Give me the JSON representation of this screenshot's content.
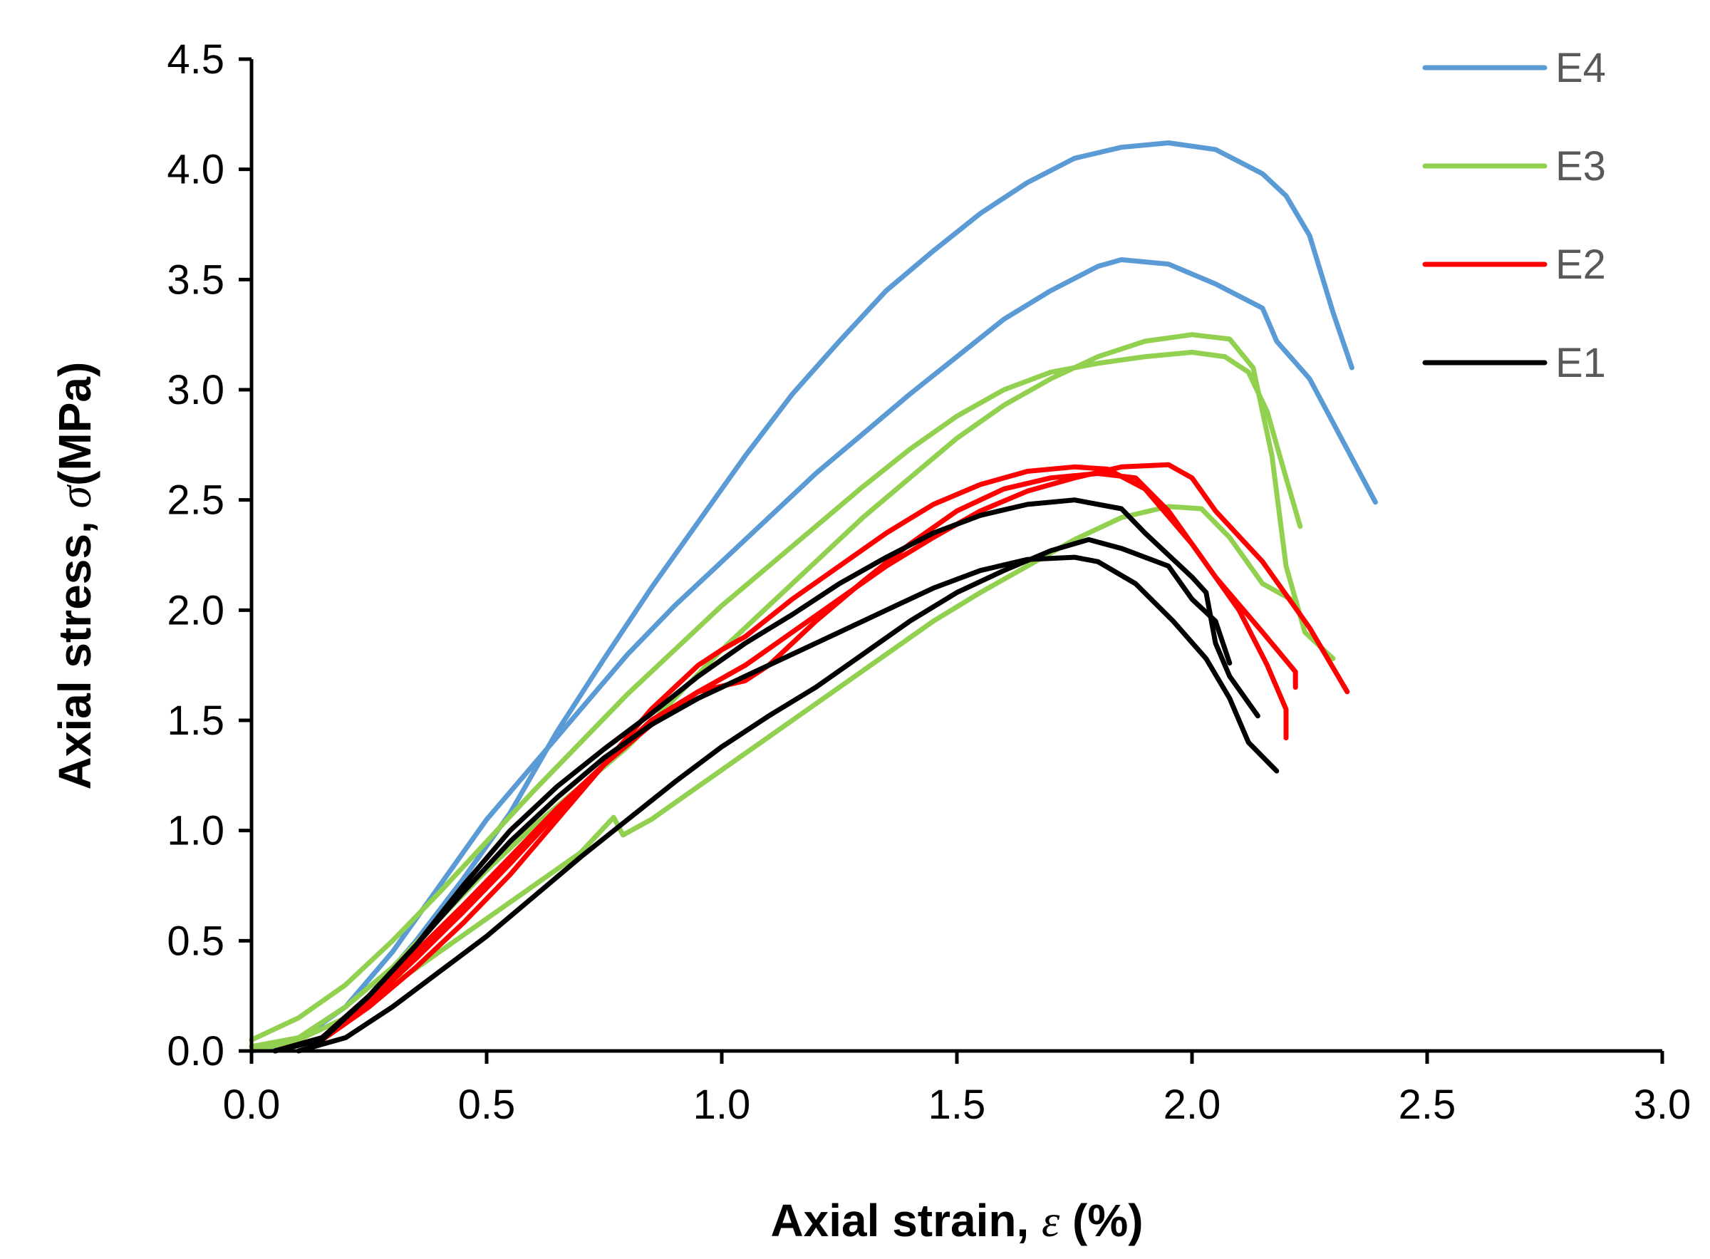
{
  "chart_data": {
    "type": "line",
    "title": "",
    "xlabel": {
      "prefix": "Axial strain, ",
      "symbol": "ε",
      "suffix": " (%)"
    },
    "ylabel": {
      "prefix": "Axial stress, ",
      "symbol": "σ",
      "suffix": "(MPa)"
    },
    "xlim": [
      0,
      3.0
    ],
    "ylim": [
      0,
      4.5
    ],
    "x_ticks": [
      "0.0",
      "0.5",
      "1.0",
      "1.5",
      "2.0",
      "2.5",
      "3.0"
    ],
    "y_ticks": [
      "0.0",
      "0.5",
      "1.0",
      "1.5",
      "2.0",
      "2.5",
      "3.0",
      "3.5",
      "4.0",
      "4.5"
    ],
    "grid": false,
    "legend_position": "top-right",
    "legend": [
      {
        "name": "E4",
        "color": "#5B9BD5"
      },
      {
        "name": "E3",
        "color": "#92D050"
      },
      {
        "name": "E2",
        "color": "#FF0000"
      },
      {
        "name": "E1",
        "color": "#000000"
      }
    ],
    "series": [
      {
        "group": "E4",
        "color": "#5B9BD5",
        "points": [
          [
            0,
            0.02
          ],
          [
            0.1,
            0.05
          ],
          [
            0.2,
            0.2
          ],
          [
            0.3,
            0.45
          ],
          [
            0.4,
            0.75
          ],
          [
            0.5,
            1.05
          ],
          [
            0.6,
            1.3
          ],
          [
            0.7,
            1.55
          ],
          [
            0.8,
            1.8
          ],
          [
            0.9,
            2.02
          ],
          [
            1.0,
            2.22
          ],
          [
            1.1,
            2.42
          ],
          [
            1.2,
            2.62
          ],
          [
            1.3,
            2.8
          ],
          [
            1.4,
            2.98
          ],
          [
            1.5,
            3.15
          ],
          [
            1.6,
            3.32
          ],
          [
            1.7,
            3.45
          ],
          [
            1.8,
            3.56
          ],
          [
            1.85,
            3.59
          ],
          [
            1.95,
            3.57
          ],
          [
            2.05,
            3.48
          ],
          [
            2.15,
            3.37
          ],
          [
            2.18,
            3.22
          ],
          [
            2.25,
            3.05
          ],
          [
            2.3,
            2.85
          ],
          [
            2.39,
            2.49
          ]
        ]
      },
      {
        "group": "E4",
        "color": "#5B9BD5",
        "points": [
          [
            0,
            0
          ],
          [
            0.15,
            0.05
          ],
          [
            0.25,
            0.25
          ],
          [
            0.35,
            0.5
          ],
          [
            0.45,
            0.78
          ],
          [
            0.55,
            1.08
          ],
          [
            0.65,
            1.45
          ],
          [
            0.75,
            1.78
          ],
          [
            0.85,
            2.1
          ],
          [
            0.95,
            2.4
          ],
          [
            1.05,
            2.7
          ],
          [
            1.15,
            2.98
          ],
          [
            1.25,
            3.22
          ],
          [
            1.35,
            3.45
          ],
          [
            1.45,
            3.63
          ],
          [
            1.55,
            3.8
          ],
          [
            1.65,
            3.94
          ],
          [
            1.75,
            4.05
          ],
          [
            1.85,
            4.1
          ],
          [
            1.95,
            4.12
          ],
          [
            2.05,
            4.09
          ],
          [
            2.15,
            3.98
          ],
          [
            2.2,
            3.88
          ],
          [
            2.25,
            3.7
          ],
          [
            2.3,
            3.35
          ],
          [
            2.34,
            3.1
          ]
        ]
      },
      {
        "group": "E3",
        "color": "#92D050",
        "points": [
          [
            0,
            0.05
          ],
          [
            0.1,
            0.15
          ],
          [
            0.2,
            0.3
          ],
          [
            0.3,
            0.5
          ],
          [
            0.4,
            0.72
          ],
          [
            0.5,
            0.95
          ],
          [
            0.6,
            1.18
          ],
          [
            0.7,
            1.4
          ],
          [
            0.8,
            1.62
          ],
          [
            0.9,
            1.82
          ],
          [
            1.0,
            2.02
          ],
          [
            1.1,
            2.2
          ],
          [
            1.2,
            2.38
          ],
          [
            1.3,
            2.56
          ],
          [
            1.4,
            2.73
          ],
          [
            1.5,
            2.88
          ],
          [
            1.6,
            3.0
          ],
          [
            1.7,
            3.08
          ],
          [
            1.8,
            3.12
          ],
          [
            1.9,
            3.15
          ],
          [
            2.0,
            3.17
          ],
          [
            2.07,
            3.15
          ],
          [
            2.12,
            3.08
          ],
          [
            2.16,
            2.9
          ],
          [
            2.2,
            2.6
          ],
          [
            2.23,
            2.38
          ]
        ]
      },
      {
        "group": "E3",
        "color": "#92D050",
        "points": [
          [
            0,
            0.02
          ],
          [
            0.1,
            0.06
          ],
          [
            0.2,
            0.2
          ],
          [
            0.3,
            0.38
          ],
          [
            0.4,
            0.6
          ],
          [
            0.5,
            0.82
          ],
          [
            0.6,
            1.02
          ],
          [
            0.7,
            1.2
          ],
          [
            0.8,
            1.38
          ],
          [
            0.9,
            1.6
          ],
          [
            1.0,
            1.82
          ],
          [
            1.1,
            2.02
          ],
          [
            1.2,
            2.22
          ],
          [
            1.3,
            2.42
          ],
          [
            1.4,
            2.6
          ],
          [
            1.5,
            2.78
          ],
          [
            1.6,
            2.93
          ],
          [
            1.7,
            3.05
          ],
          [
            1.8,
            3.15
          ],
          [
            1.9,
            3.22
          ],
          [
            2.0,
            3.25
          ],
          [
            2.08,
            3.23
          ],
          [
            2.13,
            3.1
          ],
          [
            2.17,
            2.7
          ],
          [
            2.2,
            2.2
          ],
          [
            2.24,
            1.9
          ],
          [
            2.3,
            1.78
          ]
        ]
      },
      {
        "group": "E3",
        "color": "#92D050",
        "points": [
          [
            0,
            0
          ],
          [
            0.1,
            0.05
          ],
          [
            0.2,
            0.15
          ],
          [
            0.3,
            0.3
          ],
          [
            0.4,
            0.45
          ],
          [
            0.5,
            0.6
          ],
          [
            0.6,
            0.75
          ],
          [
            0.7,
            0.9
          ],
          [
            0.77,
            1.06
          ],
          [
            0.79,
            0.98
          ],
          [
            0.85,
            1.05
          ],
          [
            0.95,
            1.2
          ],
          [
            1.05,
            1.35
          ],
          [
            1.15,
            1.5
          ],
          [
            1.25,
            1.65
          ],
          [
            1.35,
            1.8
          ],
          [
            1.45,
            1.95
          ],
          [
            1.55,
            2.08
          ],
          [
            1.65,
            2.2
          ],
          [
            1.75,
            2.32
          ],
          [
            1.85,
            2.42
          ],
          [
            1.95,
            2.47
          ],
          [
            2.02,
            2.46
          ],
          [
            2.08,
            2.33
          ],
          [
            2.15,
            2.12
          ],
          [
            2.21,
            2.05
          ]
        ]
      },
      {
        "group": "E2",
        "color": "#FF0000",
        "points": [
          [
            0.05,
            0
          ],
          [
            0.15,
            0.05
          ],
          [
            0.25,
            0.2
          ],
          [
            0.35,
            0.38
          ],
          [
            0.45,
            0.58
          ],
          [
            0.55,
            0.8
          ],
          [
            0.65,
            1.05
          ],
          [
            0.75,
            1.3
          ],
          [
            0.85,
            1.55
          ],
          [
            0.95,
            1.75
          ],
          [
            1.0,
            1.82
          ],
          [
            1.05,
            1.88
          ],
          [
            1.15,
            2.05
          ],
          [
            1.25,
            2.2
          ],
          [
            1.35,
            2.35
          ],
          [
            1.45,
            2.48
          ],
          [
            1.55,
            2.57
          ],
          [
            1.65,
            2.63
          ],
          [
            1.75,
            2.65
          ],
          [
            1.82,
            2.64
          ],
          [
            1.9,
            2.55
          ],
          [
            2.0,
            2.3
          ],
          [
            2.1,
            2.0
          ],
          [
            2.16,
            1.75
          ],
          [
            2.2,
            1.55
          ],
          [
            2.2,
            1.42
          ]
        ]
      },
      {
        "group": "E2",
        "color": "#FF0000",
        "points": [
          [
            0.05,
            0
          ],
          [
            0.15,
            0.06
          ],
          [
            0.25,
            0.22
          ],
          [
            0.35,
            0.42
          ],
          [
            0.45,
            0.63
          ],
          [
            0.55,
            0.85
          ],
          [
            0.65,
            1.08
          ],
          [
            0.75,
            1.3
          ],
          [
            0.85,
            1.5
          ],
          [
            0.95,
            1.63
          ],
          [
            1.05,
            1.68
          ],
          [
            1.1,
            1.75
          ],
          [
            1.2,
            1.95
          ],
          [
            1.3,
            2.13
          ],
          [
            1.4,
            2.3
          ],
          [
            1.5,
            2.45
          ],
          [
            1.6,
            2.55
          ],
          [
            1.7,
            2.6
          ],
          [
            1.8,
            2.62
          ],
          [
            1.88,
            2.6
          ],
          [
            1.95,
            2.45
          ],
          [
            2.05,
            2.15
          ],
          [
            2.15,
            1.9
          ],
          [
            2.22,
            1.72
          ],
          [
            2.22,
            1.65
          ]
        ]
      },
      {
        "group": "E2",
        "color": "#FF0000",
        "points": [
          [
            0.05,
            0
          ],
          [
            0.15,
            0.06
          ],
          [
            0.25,
            0.25
          ],
          [
            0.35,
            0.45
          ],
          [
            0.45,
            0.66
          ],
          [
            0.55,
            0.88
          ],
          [
            0.65,
            1.1
          ],
          [
            0.75,
            1.3
          ],
          [
            0.85,
            1.48
          ],
          [
            0.95,
            1.63
          ],
          [
            1.05,
            1.75
          ],
          [
            1.15,
            1.9
          ],
          [
            1.25,
            2.05
          ],
          [
            1.35,
            2.2
          ],
          [
            1.45,
            2.33
          ],
          [
            1.55,
            2.45
          ],
          [
            1.65,
            2.54
          ],
          [
            1.75,
            2.6
          ],
          [
            1.85,
            2.65
          ],
          [
            1.95,
            2.66
          ],
          [
            2.0,
            2.6
          ],
          [
            2.05,
            2.45
          ],
          [
            2.15,
            2.22
          ],
          [
            2.25,
            1.92
          ],
          [
            2.33,
            1.63
          ]
        ]
      },
      {
        "group": "E1",
        "color": "#000000",
        "points": [
          [
            0.05,
            0
          ],
          [
            0.15,
            0.06
          ],
          [
            0.25,
            0.25
          ],
          [
            0.35,
            0.48
          ],
          [
            0.45,
            0.72
          ],
          [
            0.55,
            0.95
          ],
          [
            0.65,
            1.15
          ],
          [
            0.75,
            1.33
          ],
          [
            0.85,
            1.48
          ],
          [
            0.95,
            1.6
          ],
          [
            1.05,
            1.7
          ],
          [
            1.15,
            1.8
          ],
          [
            1.25,
            1.9
          ],
          [
            1.35,
            2.0
          ],
          [
            1.45,
            2.1
          ],
          [
            1.55,
            2.18
          ],
          [
            1.65,
            2.23
          ],
          [
            1.75,
            2.24
          ],
          [
            1.8,
            2.22
          ],
          [
            1.88,
            2.12
          ],
          [
            1.96,
            1.95
          ],
          [
            2.03,
            1.78
          ],
          [
            2.08,
            1.6
          ],
          [
            2.12,
            1.4
          ],
          [
            2.18,
            1.27
          ]
        ]
      },
      {
        "group": "E1",
        "color": "#000000",
        "points": [
          [
            0.05,
            0
          ],
          [
            0.15,
            0.05
          ],
          [
            0.25,
            0.25
          ],
          [
            0.35,
            0.48
          ],
          [
            0.45,
            0.75
          ],
          [
            0.55,
            1.0
          ],
          [
            0.65,
            1.2
          ],
          [
            0.75,
            1.37
          ],
          [
            0.85,
            1.53
          ],
          [
            0.95,
            1.7
          ],
          [
            1.05,
            1.85
          ],
          [
            1.15,
            1.98
          ],
          [
            1.25,
            2.12
          ],
          [
            1.35,
            2.24
          ],
          [
            1.45,
            2.35
          ],
          [
            1.55,
            2.43
          ],
          [
            1.65,
            2.48
          ],
          [
            1.75,
            2.5
          ],
          [
            1.85,
            2.46
          ],
          [
            1.9,
            2.35
          ],
          [
            1.95,
            2.25
          ],
          [
            2.0,
            2.15
          ],
          [
            2.03,
            2.08
          ],
          [
            2.05,
            1.85
          ],
          [
            2.08,
            1.7
          ],
          [
            2.14,
            1.52
          ]
        ]
      },
      {
        "group": "E1",
        "color": "#000000",
        "points": [
          [
            0.1,
            0
          ],
          [
            0.2,
            0.06
          ],
          [
            0.3,
            0.2
          ],
          [
            0.4,
            0.36
          ],
          [
            0.5,
            0.52
          ],
          [
            0.6,
            0.7
          ],
          [
            0.7,
            0.88
          ],
          [
            0.8,
            1.05
          ],
          [
            0.9,
            1.22
          ],
          [
            1.0,
            1.38
          ],
          [
            1.1,
            1.52
          ],
          [
            1.2,
            1.65
          ],
          [
            1.3,
            1.8
          ],
          [
            1.4,
            1.95
          ],
          [
            1.5,
            2.08
          ],
          [
            1.6,
            2.18
          ],
          [
            1.7,
            2.27
          ],
          [
            1.78,
            2.32
          ],
          [
            1.85,
            2.28
          ],
          [
            1.95,
            2.2
          ],
          [
            2.0,
            2.05
          ],
          [
            2.05,
            1.95
          ],
          [
            2.08,
            1.76
          ]
        ]
      }
    ]
  }
}
